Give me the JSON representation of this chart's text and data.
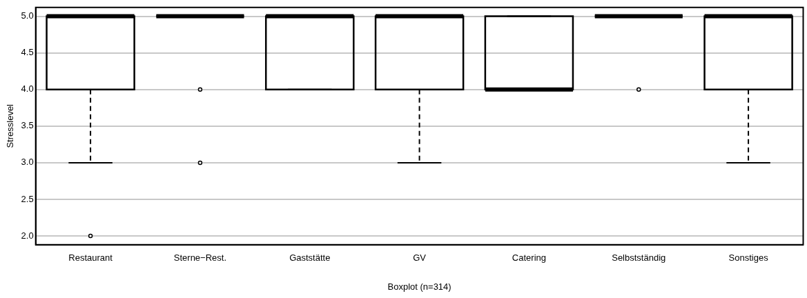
{
  "chart_data": {
    "type": "box",
    "xlabel": "Boxplot (n=314)",
    "ylabel": "Stresslevel",
    "categories": [
      "Restaurant",
      "Sterne−Rest.",
      "Gaststätte",
      "GV",
      "Catering",
      "Selbstständig",
      "Sonstiges"
    ],
    "boxes": [
      {
        "low": 3,
        "q1": 4,
        "median": 5,
        "q3": 5,
        "high": 5,
        "outliers": [
          2
        ]
      },
      {
        "low": 5,
        "q1": 5,
        "median": 5,
        "q3": 5,
        "high": 5,
        "outliers": [
          4,
          3
        ]
      },
      {
        "low": 4,
        "q1": 4,
        "median": 5,
        "q3": 5,
        "high": 5
      },
      {
        "low": 3,
        "q1": 4,
        "median": 5,
        "q3": 5,
        "high": 5
      },
      {
        "low": 4,
        "q1": 4,
        "median": 4,
        "q3": 5,
        "high": 5
      },
      {
        "low": 5,
        "q1": 5,
        "median": 5,
        "q3": 5,
        "high": 5,
        "outliers": [
          4
        ]
      },
      {
        "low": 3,
        "q1": 4,
        "median": 5,
        "q3": 5,
        "high": 5
      }
    ],
    "ylim": [
      1.88,
      5.12
    ],
    "yticks": [
      {
        "value": 2,
        "label": "2.0"
      },
      {
        "value": 2.5,
        "label": "2.5"
      },
      {
        "value": 3,
        "label": "3.0"
      },
      {
        "value": 3.5,
        "label": "3.5"
      },
      {
        "value": 4,
        "label": "4.0"
      },
      {
        "value": 4.5,
        "label": "4.5"
      },
      {
        "value": 5,
        "label": "5.0"
      }
    ],
    "grid": "y"
  }
}
